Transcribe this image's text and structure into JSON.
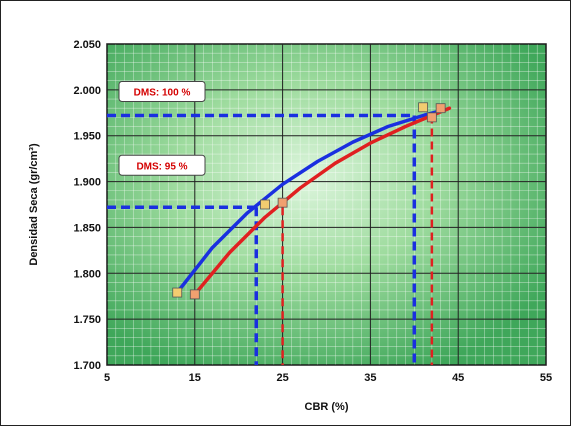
{
  "chart_data": {
    "type": "line",
    "title": "",
    "xlabel": "CBR  (%)",
    "ylabel": "Densidad Seca (gr/cm³)",
    "xlim": [
      5,
      55
    ],
    "ylim": [
      1.7,
      2.05
    ],
    "x_ticks": [
      5,
      15,
      25,
      35,
      45,
      55
    ],
    "y_ticks": [
      1.7,
      1.75,
      1.8,
      1.85,
      1.9,
      1.95,
      2.0,
      2.05
    ],
    "x_tick_labels": [
      "5",
      "15",
      "25",
      "35",
      "45",
      "55"
    ],
    "y_tick_labels": [
      "1.700",
      "1.750",
      "1.800",
      "1.850",
      "1.900",
      "1.950",
      "2.000",
      "2.050"
    ],
    "grid": true,
    "background": "green-radial-gradient",
    "series": [
      {
        "color": "#1a2fe0",
        "marker_color": "#f2cc70",
        "points": [
          {
            "x": 13,
            "y": 1.779
          },
          {
            "x": 23,
            "y": 1.875
          },
          {
            "x": 41,
            "y": 1.981
          }
        ],
        "curve": [
          [
            13,
            1.779
          ],
          [
            17,
            1.828
          ],
          [
            21,
            1.866
          ],
          [
            25,
            1.897
          ],
          [
            29,
            1.922
          ],
          [
            33,
            1.943
          ],
          [
            37,
            1.96
          ],
          [
            41,
            1.972
          ],
          [
            42.5,
            1.976
          ]
        ]
      },
      {
        "color": "#e02020",
        "marker_color": "#f0a070",
        "points": [
          {
            "x": 15,
            "y": 1.777
          },
          {
            "x": 25,
            "y": 1.877
          },
          {
            "x": 42,
            "y": 1.97
          },
          {
            "x": 43,
            "y": 1.98
          }
        ],
        "curve": [
          [
            15,
            1.777
          ],
          [
            19,
            1.823
          ],
          [
            23,
            1.861
          ],
          [
            27,
            1.893
          ],
          [
            31,
            1.92
          ],
          [
            35,
            1.942
          ],
          [
            39,
            1.96
          ],
          [
            43,
            1.976
          ],
          [
            44,
            1.98
          ]
        ]
      }
    ],
    "annotations": [
      {
        "label": "DMS: 100 %",
        "y": 1.972,
        "x_blue": 40,
        "x_red": 42
      },
      {
        "label": "DMS: 95 %",
        "y": 1.872,
        "x_blue": 22,
        "x_red": 25
      }
    ],
    "colors": {
      "blue": "#1a2fe0",
      "red": "#e02020",
      "annotation_text": "#d40000"
    }
  }
}
